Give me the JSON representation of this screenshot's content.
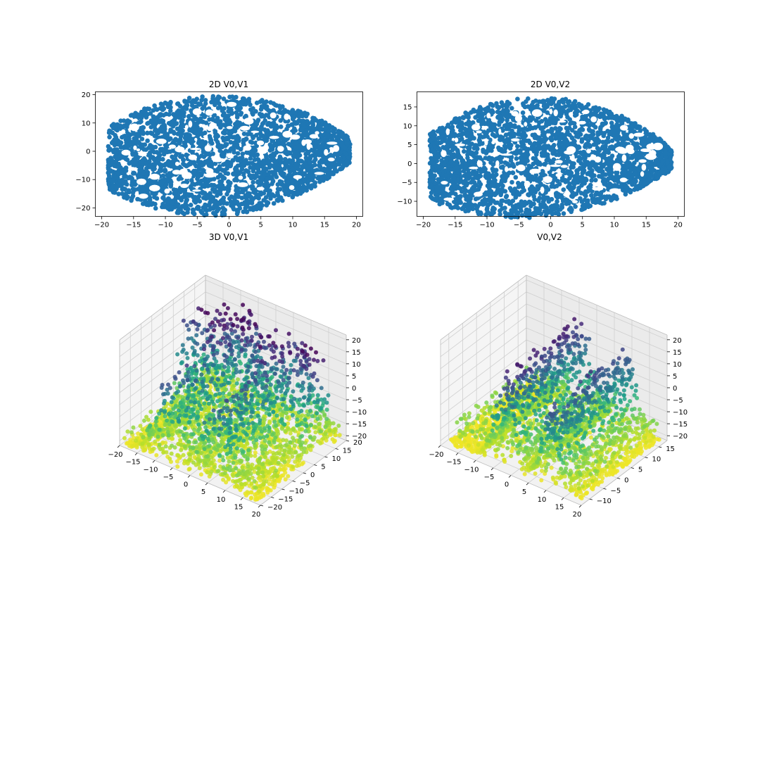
{
  "chart_data": [
    {
      "type": "scatter",
      "title": "2D V0,V1",
      "xlabel": "",
      "ylabel": "",
      "xlim": [
        -21,
        21
      ],
      "ylim": [
        -23,
        21
      ],
      "xticks": [
        -20,
        -15,
        -10,
        -5,
        0,
        5,
        10,
        15,
        20
      ],
      "yticks": [
        -20,
        -10,
        0,
        10,
        20
      ],
      "color": "#1f77b4",
      "shape": {
        "x_range": [
          -19,
          19
        ],
        "y_top_max": 19.5,
        "y_bottom_min": -21.5
      }
    },
    {
      "type": "scatter",
      "title": "2D V0,V2",
      "xlabel": "",
      "ylabel": "",
      "xlim": [
        -21,
        21
      ],
      "ylim": [
        -14,
        19
      ],
      "xticks": [
        -20,
        -15,
        -10,
        -5,
        0,
        5,
        10,
        15,
        20
      ],
      "yticks": [
        -10,
        -5,
        0,
        5,
        10,
        15
      ],
      "color": "#1f77b4",
      "shape": {
        "x_range": [
          -19,
          19
        ],
        "y_top_max": 17.5,
        "y_bottom_min": -13
      }
    },
    {
      "type": "scatter3d",
      "title": "3D V0,V1",
      "xlim": [
        -20,
        20
      ],
      "ylim": [
        -20,
        20
      ],
      "zlim": [
        -22,
        22
      ],
      "xticks": [
        -20,
        -15,
        -10,
        -5,
        0,
        5,
        10,
        15,
        20
      ],
      "yticks": [
        -20,
        -15,
        -10,
        -5,
        0,
        5,
        10,
        15,
        20
      ],
      "zticks": [
        -20,
        -15,
        -10,
        -5,
        0,
        5,
        10,
        15,
        20
      ],
      "colormap": "viridis"
    },
    {
      "type": "scatter3d",
      "title": "V0,V2",
      "xlim": [
        -20,
        20
      ],
      "ylim": [
        -13,
        18
      ],
      "zlim": [
        -22,
        22
      ],
      "xticks": [
        -20,
        -15,
        -10,
        -5,
        0,
        5,
        10,
        15,
        20
      ],
      "yticks": [
        -10,
        -5,
        0,
        5,
        10,
        15
      ],
      "zticks": [
        -20,
        -15,
        -10,
        -5,
        0,
        5,
        10,
        15,
        20
      ],
      "colormap": "viridis"
    }
  ]
}
